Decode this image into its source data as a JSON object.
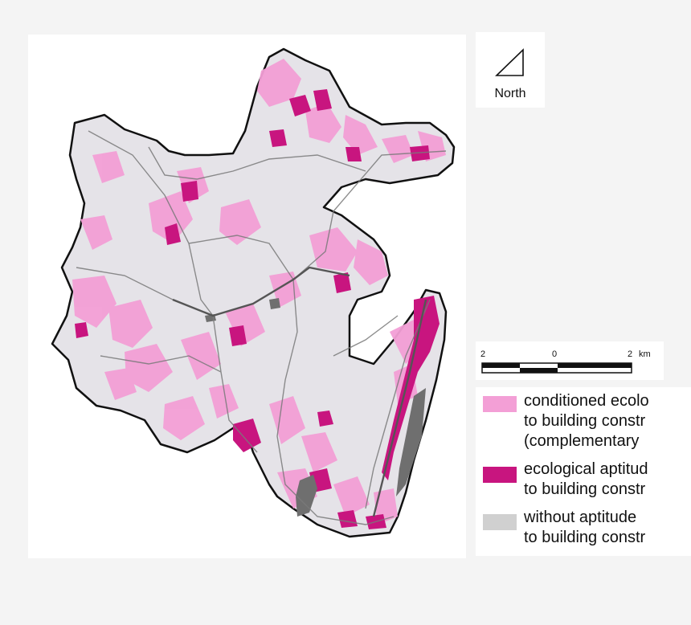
{
  "north_arrow": {
    "label": "North"
  },
  "scale_bar": {
    "tick_left": "2",
    "tick_middle": "0",
    "tick_right": "2",
    "unit": "km"
  },
  "legend": {
    "items": [
      {
        "text": "conditioned ecolo\nto building constr\n(complementary",
        "color": "#f39fd6"
      },
      {
        "text": "ecological aptitud\nto building constr",
        "color": "#c8157f"
      },
      {
        "text": "without aptitude\nto building constr",
        "color": "#d0d0d0"
      }
    ]
  },
  "colors": {
    "region_fill": "#e5e3e8",
    "region_outline": "#111111",
    "conditioned": "#f39fd6",
    "aptitude": "#c8157f",
    "without_aptitude": "#6f6f6f",
    "roads": "#7a7a7a"
  }
}
